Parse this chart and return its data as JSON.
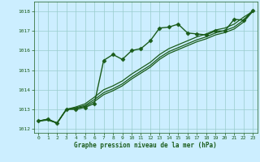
{
  "title": "Graphe pression niveau de la mer (hPa)",
  "background_color": "#cceeff",
  "grid_color": "#99cccc",
  "line_color": "#1a5c1a",
  "xlim": [
    -0.5,
    23.5
  ],
  "ylim": [
    1011.8,
    1018.5
  ],
  "yticks": [
    1012,
    1013,
    1014,
    1015,
    1016,
    1017,
    1018
  ],
  "xticks": [
    0,
    1,
    2,
    3,
    4,
    5,
    6,
    7,
    8,
    9,
    10,
    11,
    12,
    13,
    14,
    15,
    16,
    17,
    18,
    19,
    20,
    21,
    22,
    23
  ],
  "series": [
    {
      "x": [
        0,
        1,
        2,
        3,
        4,
        5,
        6,
        7,
        8,
        9,
        10,
        11,
        12,
        13,
        14,
        15,
        16,
        17,
        18,
        19,
        20,
        21,
        22,
        23
      ],
      "y": [
        1012.4,
        1012.5,
        1012.3,
        1013.0,
        1013.0,
        1013.1,
        1013.3,
        1015.5,
        1015.8,
        1015.55,
        1016.0,
        1016.1,
        1016.5,
        1017.15,
        1017.2,
        1017.35,
        1016.9,
        1016.85,
        1016.8,
        1017.0,
        1017.0,
        1017.6,
        1017.55,
        1018.05
      ],
      "marker": "D",
      "markersize": 2.5,
      "linewidth": 1.0
    },
    {
      "x": [
        0,
        1,
        2,
        3,
        4,
        5,
        6,
        7,
        8,
        9,
        10,
        11,
        12,
        13,
        14,
        15,
        16,
        17,
        18,
        19,
        20,
        21,
        22,
        23
      ],
      "y": [
        1012.4,
        1012.45,
        1012.3,
        1013.0,
        1013.05,
        1013.15,
        1013.4,
        1013.75,
        1013.95,
        1014.2,
        1014.55,
        1014.85,
        1015.15,
        1015.55,
        1015.85,
        1016.05,
        1016.25,
        1016.45,
        1016.6,
        1016.8,
        1016.92,
        1017.1,
        1017.45,
        1018.0
      ],
      "marker": null,
      "linewidth": 0.9
    },
    {
      "x": [
        0,
        1,
        2,
        3,
        4,
        5,
        6,
        7,
        8,
        9,
        10,
        11,
        12,
        13,
        14,
        15,
        16,
        17,
        18,
        19,
        20,
        21,
        22,
        23
      ],
      "y": [
        1012.4,
        1012.48,
        1012.3,
        1013.0,
        1013.08,
        1013.2,
        1013.5,
        1013.85,
        1014.05,
        1014.3,
        1014.65,
        1014.95,
        1015.25,
        1015.65,
        1015.95,
        1016.15,
        1016.35,
        1016.55,
        1016.7,
        1016.9,
        1017.02,
        1017.2,
        1017.55,
        1018.0
      ],
      "marker": null,
      "linewidth": 0.9
    },
    {
      "x": [
        0,
        1,
        2,
        3,
        4,
        5,
        6,
        7,
        8,
        9,
        10,
        11,
        12,
        13,
        14,
        15,
        16,
        17,
        18,
        19,
        20,
        21,
        22,
        23
      ],
      "y": [
        1012.4,
        1012.5,
        1012.3,
        1013.0,
        1013.12,
        1013.28,
        1013.62,
        1014.0,
        1014.2,
        1014.45,
        1014.8,
        1015.1,
        1015.4,
        1015.8,
        1016.1,
        1016.3,
        1016.5,
        1016.7,
        1016.85,
        1017.05,
        1017.15,
        1017.35,
        1017.7,
        1018.0
      ],
      "marker": null,
      "linewidth": 0.9
    }
  ]
}
